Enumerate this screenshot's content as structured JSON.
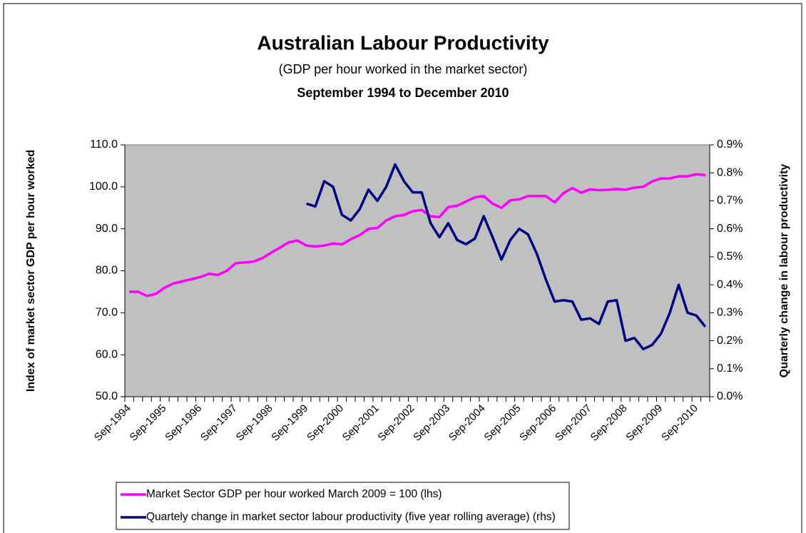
{
  "chart_data": {
    "type": "line",
    "title": "Australian Labour Productivity",
    "subtitle": "(GDP per hour worked in the market sector)",
    "period": "September 1994 to December 2010",
    "y_label": "Index of market sector GDP per hour worked",
    "y2_label": "Quarterly change in labour productivity",
    "categories": [
      "Sep-1994",
      null,
      null,
      null,
      "Sep-1995",
      null,
      null,
      null,
      "Sep-1996",
      null,
      null,
      null,
      "Sep-1997",
      null,
      null,
      null,
      "Sep-1998",
      null,
      null,
      null,
      "Sep-1999",
      null,
      null,
      null,
      "Sep-2000",
      null,
      null,
      null,
      "Sep-2001",
      null,
      null,
      null,
      "Sep-2002",
      null,
      null,
      null,
      "Sep-2003",
      null,
      null,
      null,
      "Sep-2004",
      null,
      null,
      null,
      "Sep-2005",
      null,
      null,
      null,
      "Sep-2006",
      null,
      null,
      null,
      "Sep-2007",
      null,
      null,
      null,
      "Sep-2008",
      null,
      null,
      null,
      "Sep-2009",
      null,
      null,
      null,
      "Sep-2010",
      null
    ],
    "series": [
      {
        "name": "Market Sector GDP per hour worked March 2009 = 100 (lhs)",
        "color": "#ff00ff",
        "values": [
          75,
          75,
          74,
          74.5,
          76,
          77,
          77.5,
          78,
          78.5,
          79.3,
          79,
          80,
          81.8,
          82,
          82.2,
          83,
          84.3,
          85.5,
          86.8,
          87.2,
          86,
          85.8,
          86,
          86.5,
          86.3,
          87.5,
          88.5,
          90,
          90.2,
          92,
          93,
          93.3,
          94.2,
          94.5,
          93,
          92.8,
          95.2,
          95.5,
          96.5,
          97.5,
          97.8,
          96,
          95,
          96.8,
          97,
          97.8,
          97.8,
          97.8,
          96.3,
          98.5,
          99.7,
          98.6,
          99.4,
          99.2,
          99.3,
          99.5,
          99.3,
          99.8,
          100,
          101.3,
          102,
          102,
          102.5,
          102.5,
          103,
          102.8
        ]
      },
      {
        "name": "Quartely change in market sector labour productivity (five year rolling average) (rhs)",
        "color": "#000080",
        "axis": "y2",
        "values": [
          null,
          null,
          null,
          null,
          null,
          null,
          null,
          null,
          null,
          null,
          null,
          null,
          null,
          null,
          null,
          null,
          null,
          null,
          null,
          null,
          0.69,
          0.68,
          0.77,
          0.75,
          0.65,
          0.63,
          0.67,
          0.74,
          0.7,
          0.75,
          0.83,
          0.77,
          0.73,
          0.73,
          0.62,
          0.57,
          0.62,
          0.56,
          0.545,
          0.565,
          0.645,
          0.57,
          0.49,
          0.56,
          0.6,
          0.58,
          0.51,
          0.42,
          0.34,
          0.345,
          0.34,
          0.275,
          0.28,
          0.26,
          0.34,
          0.345,
          0.2,
          0.21,
          0.17,
          0.185,
          0.225,
          0.3,
          0.4,
          0.3,
          0.29,
          0.25
        ]
      }
    ],
    "ylim": [
      50,
      110
    ],
    "yticks": [
      {
        "value": 50,
        "label": "50.0"
      },
      {
        "value": 60,
        "label": "60.0"
      },
      {
        "value": 70,
        "label": "70.0"
      },
      {
        "value": 80,
        "label": "80.0"
      },
      {
        "value": 90,
        "label": "90.0"
      },
      {
        "value": 100,
        "label": "100.0"
      },
      {
        "value": 110,
        "label": "110.0"
      }
    ],
    "y2lim": [
      0,
      0.9
    ],
    "y2ticks": [
      {
        "value": 0,
        "label": "0.0%"
      },
      {
        "value": 0.1,
        "label": "0.1%"
      },
      {
        "value": 0.2,
        "label": "0.2%"
      },
      {
        "value": 0.3,
        "label": "0.3%"
      },
      {
        "value": 0.4,
        "label": "0.4%"
      },
      {
        "value": 0.5,
        "label": "0.5%"
      },
      {
        "value": 0.6,
        "label": "0.6%"
      },
      {
        "value": 0.7,
        "label": "0.7%"
      },
      {
        "value": 0.8,
        "label": "0.8%"
      },
      {
        "value": 0.9,
        "label": "0.9%"
      }
    ],
    "grid": false,
    "plot_background": "#c0c0c0",
    "legend": "bottom"
  }
}
